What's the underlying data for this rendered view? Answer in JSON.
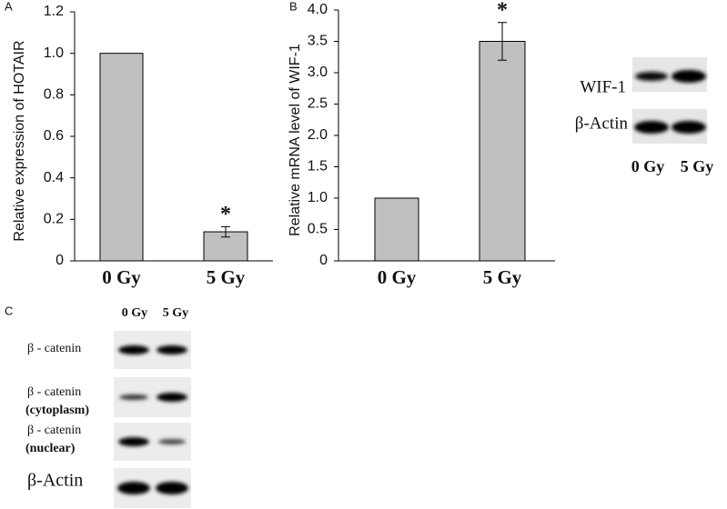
{
  "chart_data": [
    {
      "type": "bar",
      "panel": "A",
      "y_label": "Relative expression of HOTAIR",
      "categories": [
        "0 Gy",
        "5 Gy"
      ],
      "values": [
        1.0,
        0.14
      ],
      "errors": [
        null,
        0.025
      ],
      "significance": [
        null,
        "*"
      ],
      "color": "#c0c0c0",
      "ylim": [
        0,
        1.2
      ],
      "yticks": [
        0,
        0.2,
        0.4,
        0.6,
        0.8,
        {
          "value": 1,
          "label": "1.0"
        },
        1.2
      ]
    },
    {
      "type": "bar",
      "panel": "B",
      "y_label": "Relative mRNA level of WIF-1",
      "categories": [
        "0 Gy",
        "5 Gy"
      ],
      "values": [
        1.0,
        3.5
      ],
      "errors": [
        null,
        0.3
      ],
      "significance": [
        null,
        "*"
      ],
      "color": "#c0c0c0",
      "ylim": [
        0,
        4
      ],
      "yticks": [
        0,
        0.5,
        {
          "value": 1,
          "label": "1.0"
        },
        1.5,
        {
          "value": 2,
          "label": "2.0"
        },
        2.5,
        {
          "value": 3,
          "label": "3.0"
        },
        3.5,
        {
          "value": 4,
          "label": "4.0"
        }
      ]
    }
  ],
  "blot_b": {
    "rows": [
      "WIF-1",
      "β-Actin"
    ],
    "lanes": [
      "0 Gy",
      "5 Gy"
    ]
  },
  "blot_c": {
    "panel": "C",
    "lanes": [
      "0 Gy",
      "5 Gy"
    ],
    "rows": [
      [
        "β - catenin"
      ],
      [
        "β - catenin",
        "(cytoplasm)"
      ],
      [
        "β - catenin",
        "(nuclear)"
      ],
      [
        "β-Actin"
      ]
    ]
  }
}
